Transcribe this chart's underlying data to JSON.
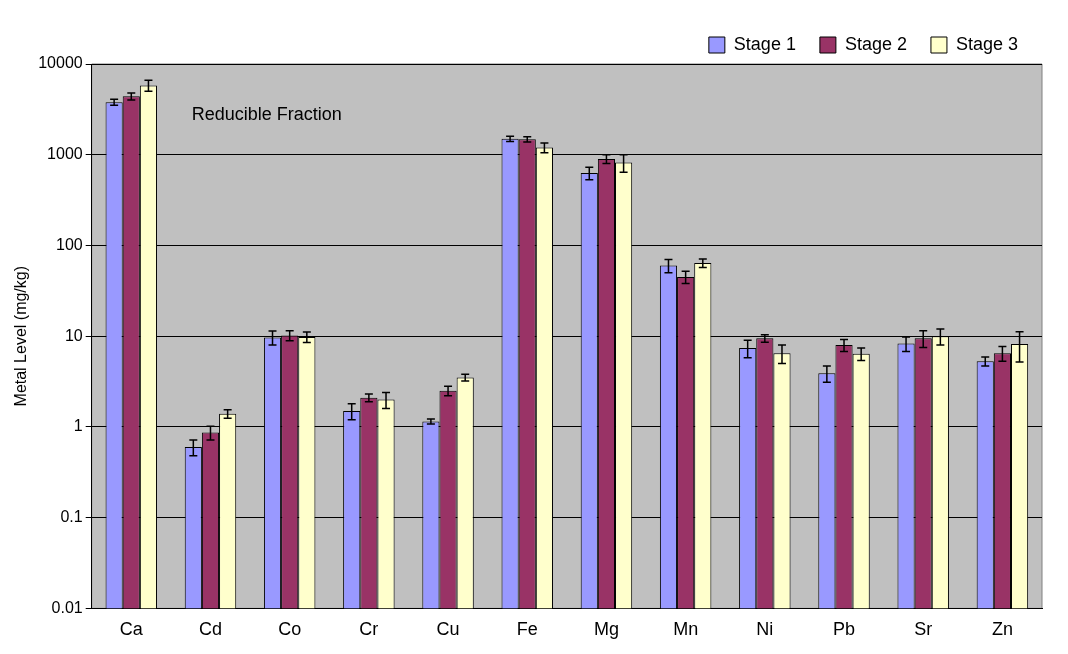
{
  "chart_data": {
    "type": "bar",
    "ylabel": "Metal Level (mg/kg)",
    "annotations": [
      "Reducible Fraction"
    ],
    "categories": [
      "Ca",
      "Cd",
      "Co",
      "Cr",
      "Cu",
      "Fe",
      "Mg",
      "Mn",
      "Ni",
      "Pb",
      "Sr",
      "Zn"
    ],
    "series": [
      {
        "name": "Stage 1",
        "color": "#9999ff",
        "values": [
          3800,
          0.6,
          9.7,
          1.5,
          1.15,
          1500,
          630,
          60,
          7.4,
          3.9,
          8.3,
          5.3
        ],
        "errors": [
          300,
          0.12,
          1.7,
          0.3,
          0.07,
          100,
          100,
          10,
          1.6,
          0.8,
          1.5,
          0.6
        ]
      },
      {
        "name": "Stage 2",
        "color": "#993366",
        "values": [
          4400,
          0.87,
          10.2,
          2.1,
          2.5,
          1480,
          900,
          45,
          9.5,
          8.0,
          9.5,
          6.5
        ],
        "errors": [
          400,
          0.15,
          1.3,
          0.2,
          0.3,
          100,
          100,
          7,
          0.9,
          1.2,
          2,
          1.2
        ]
      },
      {
        "name": "Stage 3",
        "color": "#ffffcc",
        "values": [
          5800,
          1.4,
          9.8,
          2.0,
          3.5,
          1200,
          820,
          64,
          6.5,
          6.4,
          10,
          8.2
        ],
        "errors": [
          800,
          0.15,
          1.3,
          0.4,
          0.3,
          150,
          180,
          7,
          1.5,
          1,
          2,
          3
        ]
      }
    ],
    "log": true,
    "ylim": [
      0.01,
      10000
    ],
    "yticks": [
      0.01,
      0.1,
      1,
      10,
      100,
      1000,
      10000
    ],
    "grid": "y",
    "legend": "top right"
  }
}
